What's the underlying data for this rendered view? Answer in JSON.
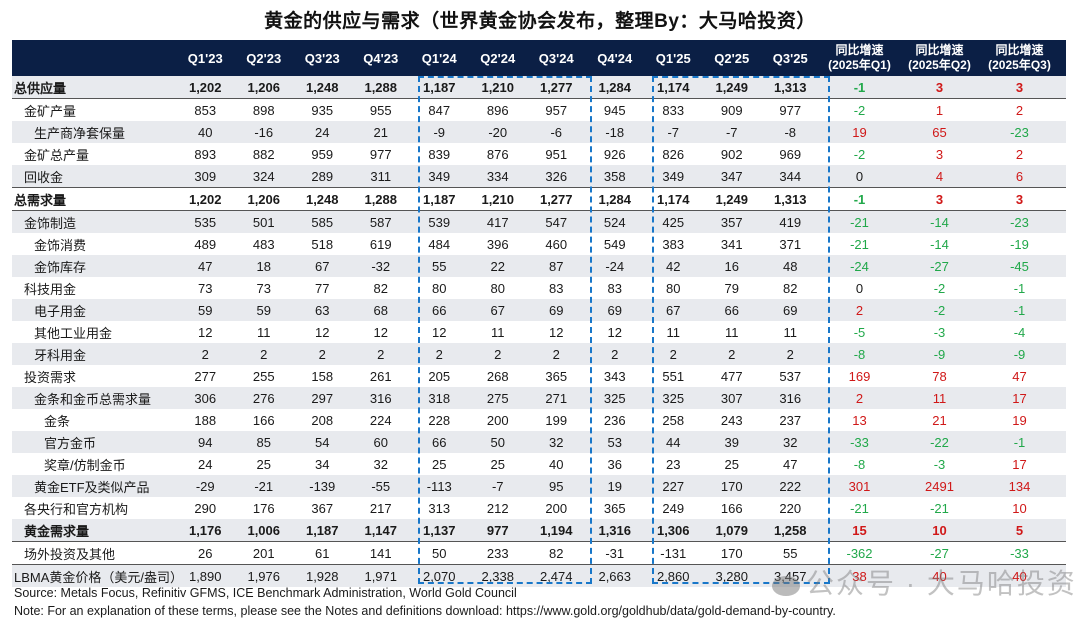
{
  "title": "黄金的供应与需求（世界黄金协会发布，整理By：大马哈投资）",
  "header": {
    "first": "",
    "quarters": [
      "Q1'23",
      "Q2'23",
      "Q3'23",
      "Q4'23",
      "Q1'24",
      "Q2'24",
      "Q3'24",
      "Q4'24",
      "Q1'25",
      "Q2'25",
      "Q3'25"
    ],
    "yoy": [
      {
        "line1": "同比增速",
        "line2": "(2025年Q1)"
      },
      {
        "line1": "同比增速",
        "line2": "(2025年Q2)"
      },
      {
        "line1": "同比增速",
        "line2": "(2025年Q3)"
      }
    ]
  },
  "rows": [
    {
      "label": "总供应量",
      "values": [
        "1,202",
        "1,206",
        "1,248",
        "1,288",
        "1,187",
        "1,210",
        "1,277",
        "1,284",
        "1,174",
        "1,249",
        "1,313"
      ],
      "yoy": [
        "-1",
        "3",
        "3"
      ]
    },
    {
      "label": "金矿产量",
      "values": [
        "853",
        "898",
        "935",
        "955",
        "847",
        "896",
        "957",
        "945",
        "833",
        "909",
        "977"
      ],
      "yoy": [
        "-2",
        "1",
        "2"
      ]
    },
    {
      "label": "生产商净套保量",
      "values": [
        "40",
        "-16",
        "24",
        "21",
        "-9",
        "-20",
        "-6",
        "-18",
        "-7",
        "-7",
        "-8"
      ],
      "yoy": [
        "19",
        "65",
        "-23"
      ]
    },
    {
      "label": "金矿总产量",
      "values": [
        "893",
        "882",
        "959",
        "977",
        "839",
        "876",
        "951",
        "926",
        "826",
        "902",
        "969"
      ],
      "yoy": [
        "-2",
        "3",
        "2"
      ]
    },
    {
      "label": "回收金",
      "values": [
        "309",
        "324",
        "289",
        "311",
        "349",
        "334",
        "326",
        "358",
        "349",
        "347",
        "344"
      ],
      "yoy": [
        "0",
        "4",
        "6"
      ]
    },
    {
      "label": "总需求量",
      "values": [
        "1,202",
        "1,206",
        "1,248",
        "1,288",
        "1,187",
        "1,210",
        "1,277",
        "1,284",
        "1,174",
        "1,249",
        "1,313"
      ],
      "yoy": [
        "-1",
        "3",
        "3"
      ]
    },
    {
      "label": "金饰制造",
      "values": [
        "535",
        "501",
        "585",
        "587",
        "539",
        "417",
        "547",
        "524",
        "425",
        "357",
        "419"
      ],
      "yoy": [
        "-21",
        "-14",
        "-23"
      ]
    },
    {
      "label": "金饰消费",
      "values": [
        "489",
        "483",
        "518",
        "619",
        "484",
        "396",
        "460",
        "549",
        "383",
        "341",
        "371"
      ],
      "yoy": [
        "-21",
        "-14",
        "-19"
      ]
    },
    {
      "label": "金饰库存",
      "values": [
        "47",
        "18",
        "67",
        "-32",
        "55",
        "22",
        "87",
        "-24",
        "42",
        "16",
        "48"
      ],
      "yoy": [
        "-24",
        "-27",
        "-45"
      ]
    },
    {
      "label": "科技用金",
      "values": [
        "73",
        "73",
        "77",
        "82",
        "80",
        "80",
        "83",
        "83",
        "80",
        "79",
        "82"
      ],
      "yoy": [
        "0",
        "-2",
        "-1"
      ]
    },
    {
      "label": "电子用金",
      "values": [
        "59",
        "59",
        "63",
        "68",
        "66",
        "67",
        "69",
        "69",
        "67",
        "66",
        "69"
      ],
      "yoy": [
        "2",
        "-2",
        "-1"
      ]
    },
    {
      "label": "其他工业用金",
      "values": [
        "12",
        "11",
        "12",
        "12",
        "12",
        "11",
        "12",
        "12",
        "11",
        "11",
        "11"
      ],
      "yoy": [
        "-5",
        "-3",
        "-4"
      ]
    },
    {
      "label": "牙科用金",
      "values": [
        "2",
        "2",
        "2",
        "2",
        "2",
        "2",
        "2",
        "2",
        "2",
        "2",
        "2"
      ],
      "yoy": [
        "-8",
        "-9",
        "-9"
      ]
    },
    {
      "label": "投资需求",
      "values": [
        "277",
        "255",
        "158",
        "261",
        "205",
        "268",
        "365",
        "343",
        "551",
        "477",
        "537"
      ],
      "yoy": [
        "169",
        "78",
        "47"
      ]
    },
    {
      "label": "金条和金币总需求量",
      "values": [
        "306",
        "276",
        "297",
        "316",
        "318",
        "275",
        "271",
        "325",
        "325",
        "307",
        "316"
      ],
      "yoy": [
        "2",
        "11",
        "17"
      ]
    },
    {
      "label": "金条",
      "values": [
        "188",
        "166",
        "208",
        "224",
        "228",
        "200",
        "199",
        "236",
        "258",
        "243",
        "237"
      ],
      "yoy": [
        "13",
        "21",
        "19"
      ]
    },
    {
      "label": "官方金币",
      "values": [
        "94",
        "85",
        "54",
        "60",
        "66",
        "50",
        "32",
        "53",
        "44",
        "39",
        "32"
      ],
      "yoy": [
        "-33",
        "-22",
        "-1"
      ]
    },
    {
      "label": "奖章/仿制金币",
      "values": [
        "24",
        "25",
        "34",
        "32",
        "25",
        "25",
        "40",
        "36",
        "23",
        "25",
        "47"
      ],
      "yoy": [
        "-8",
        "-3",
        "17"
      ]
    },
    {
      "label": "黄金ETF及类似产品",
      "values": [
        "-29",
        "-21",
        "-139",
        "-55",
        "-113",
        "-7",
        "95",
        "19",
        "227",
        "170",
        "222"
      ],
      "yoy": [
        "301",
        "2491",
        "134"
      ]
    },
    {
      "label": "各央行和官方机构",
      "values": [
        "290",
        "176",
        "367",
        "217",
        "313",
        "212",
        "200",
        "365",
        "249",
        "166",
        "220"
      ],
      "yoy": [
        "-21",
        "-21",
        "10"
      ]
    },
    {
      "label": "黄金需求量",
      "values": [
        "1,176",
        "1,006",
        "1,187",
        "1,147",
        "1,137",
        "977",
        "1,194",
        "1,316",
        "1,306",
        "1,079",
        "1,258"
      ],
      "yoy": [
        "15",
        "10",
        "5"
      ]
    },
    {
      "label": "场外投资及其他",
      "values": [
        "26",
        "201",
        "61",
        "141",
        "50",
        "233",
        "82",
        "-31",
        "-131",
        "170",
        "55"
      ],
      "yoy": [
        "-362",
        "-27",
        "-33"
      ]
    },
    {
      "label": "LBMA黄金价格（美元/盎司）",
      "values": [
        "1,890",
        "1,976",
        "1,928",
        "1,971",
        "2,070",
        "2,338",
        "2,474",
        "2,663",
        "2,860",
        "3,280",
        "3,457"
      ],
      "yoy": [
        "38",
        "40",
        "40"
      ]
    }
  ],
  "footer": {
    "source": "Source: Metals Focus, Refinitiv GFMS, ICE Benchmark Administration, World Gold Council",
    "note": "Note: For an explanation of these terms, please see the Notes and definitions download: https://www.gold.org/goldhub/data/gold-demand-by-country."
  },
  "watermark": "公众号 · 大马哈投资",
  "colors": {
    "header_bg": "#0b1f45",
    "positive": "#d01818",
    "negative": "#21a84a",
    "dash_box": "#1877c9",
    "alt_row": "#e8eaee"
  }
}
